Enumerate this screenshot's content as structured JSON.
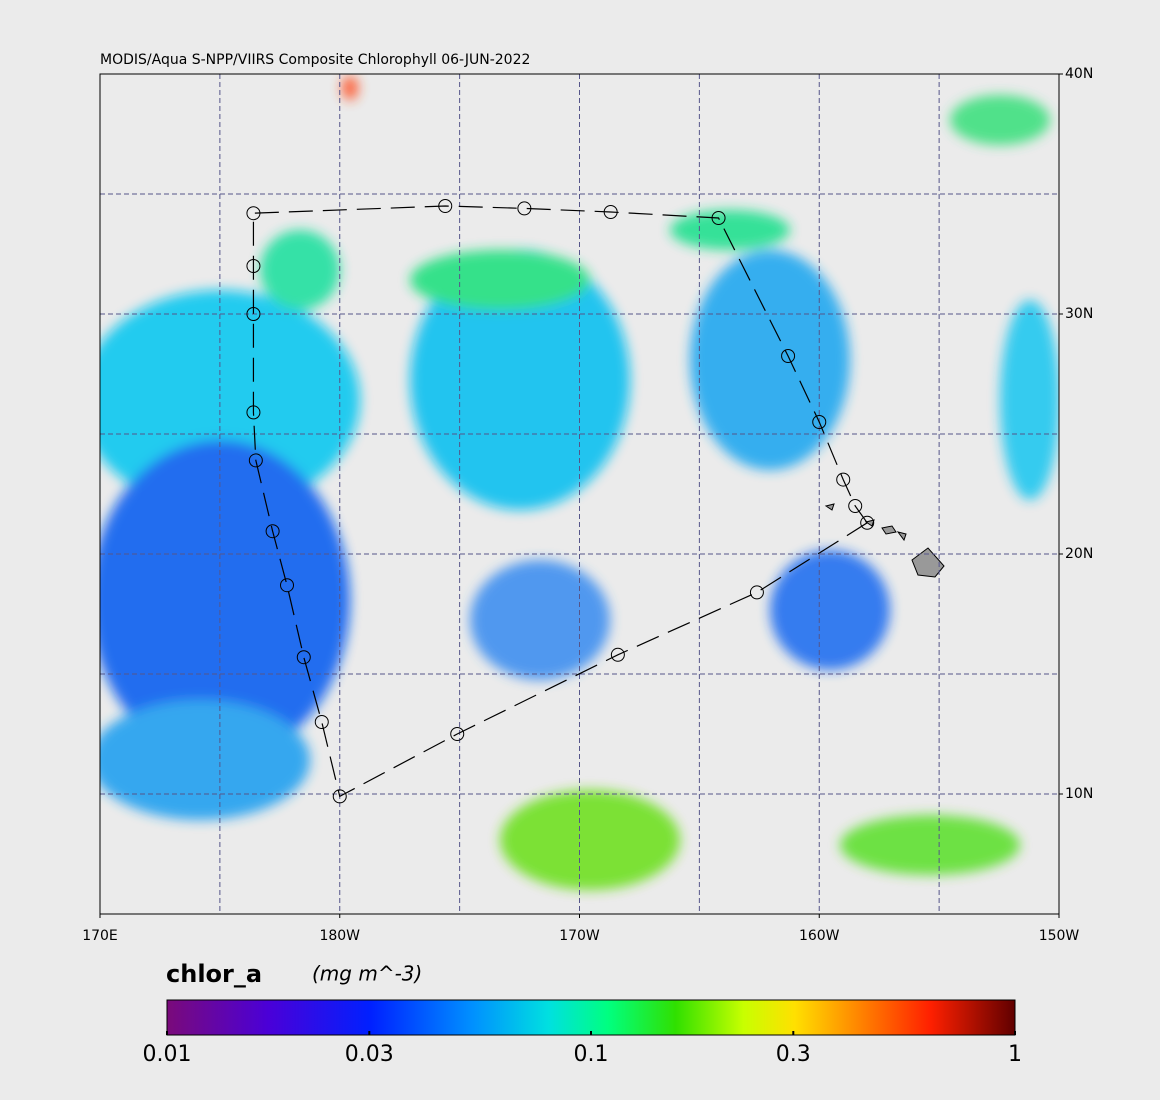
{
  "map": {
    "title": "MODIS/Aqua S-NPP/VIIRS Composite Chlorophyll 06-JUN-2022",
    "lonlim": [
      170,
      210
    ],
    "latlim": [
      5,
      40
    ],
    "lon_grid": [
      175,
      180,
      185,
      190,
      195,
      200,
      205
    ],
    "lat_grid": [
      10,
      15,
      20,
      25,
      30,
      35
    ],
    "lon_labels": [
      {
        "value": 170,
        "label": "170E"
      },
      {
        "value": 180,
        "label": "180W"
      },
      {
        "value": 190,
        "label": "170W"
      },
      {
        "value": 200,
        "label": "160W"
      },
      {
        "value": 210,
        "label": "150W"
      }
    ],
    "lat_labels": [
      {
        "value": 40,
        "label": "40N"
      },
      {
        "value": 30,
        "label": "30N"
      },
      {
        "value": 20,
        "label": "20N"
      },
      {
        "value": 10,
        "label": "10N"
      }
    ],
    "track": {
      "lon": [
        202.0,
        197.4,
        191.6,
        184.9,
        180.0,
        179.25,
        178.5,
        177.8,
        177.2,
        176.5,
        176.4,
        176.4,
        176.4,
        176.4,
        184.4,
        187.7,
        191.3,
        195.8,
        198.7,
        200.0,
        201.0,
        201.5
      ],
      "lat": [
        21.3,
        18.4,
        15.8,
        12.5,
        9.9,
        13.0,
        15.7,
        18.7,
        20.95,
        23.9,
        25.9,
        30.0,
        32.0,
        34.2,
        34.5,
        34.4,
        34.25,
        34.0,
        28.25,
        25.5,
        23.1,
        22.0
      ]
    },
    "colorbar": {
      "label": "chlor_a",
      "units": "(mg m^-3)",
      "log": true,
      "lim": [
        0.01,
        1
      ],
      "ticks": [
        0.01,
        0.03,
        0.1,
        0.3,
        1
      ]
    }
  }
}
